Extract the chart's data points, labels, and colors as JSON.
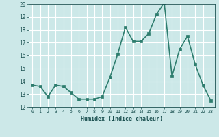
{
  "x": [
    0,
    1,
    2,
    3,
    4,
    5,
    6,
    7,
    8,
    9,
    10,
    11,
    12,
    13,
    14,
    15,
    16,
    17,
    18,
    19,
    20,
    21,
    22,
    23
  ],
  "y": [
    13.7,
    13.6,
    12.8,
    13.7,
    13.6,
    13.1,
    12.6,
    12.6,
    12.6,
    12.8,
    14.3,
    16.1,
    18.2,
    17.1,
    17.1,
    17.7,
    19.2,
    20.1,
    14.4,
    16.5,
    17.5,
    15.3,
    13.7,
    12.5
  ],
  "title": "",
  "xlabel": "Humidex (Indice chaleur)",
  "ylabel": "",
  "ylim": [
    12,
    20
  ],
  "xlim": [
    -0.5,
    23.5
  ],
  "yticks": [
    12,
    13,
    14,
    15,
    16,
    17,
    18,
    19,
    20
  ],
  "xticks": [
    0,
    1,
    2,
    3,
    4,
    5,
    6,
    7,
    8,
    9,
    10,
    11,
    12,
    13,
    14,
    15,
    16,
    17,
    18,
    19,
    20,
    21,
    22,
    23
  ],
  "line_color": "#2e7d6e",
  "marker_color": "#2e7d6e",
  "bg_color": "#cce8e8",
  "grid_color": "#ffffff",
  "tick_label_color": "#1a5050",
  "xlabel_color": "#1a5050",
  "line_width": 1.2,
  "marker_size": 2.5
}
